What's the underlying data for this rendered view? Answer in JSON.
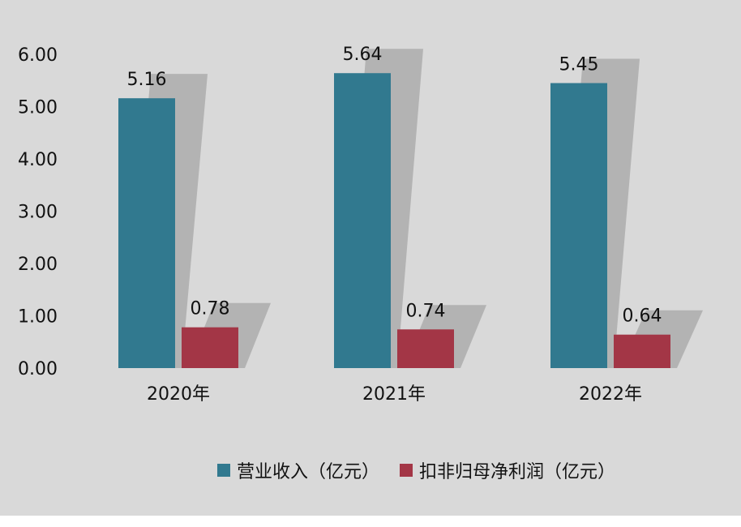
{
  "chart_data": {
    "type": "bar",
    "categories": [
      "2020年",
      "2021年",
      "2022年"
    ],
    "series": [
      {
        "name": "营业收入（亿元）",
        "values": [
          5.16,
          5.64,
          5.45
        ],
        "color": "#31798f"
      },
      {
        "name": "扣非归母净利润（亿元）",
        "values": [
          0.78,
          0.74,
          0.64
        ],
        "color": "#a33646"
      }
    ],
    "ylim": [
      0,
      6
    ],
    "yticks": [
      "0.00",
      "1.00",
      "2.00",
      "3.00",
      "4.00",
      "5.00",
      "6.00"
    ],
    "data_labels": [
      [
        "5.16",
        "5.64",
        "5.45"
      ],
      [
        "0.78",
        "0.74",
        "0.64"
      ]
    ],
    "title": "",
    "xlabel": "",
    "ylabel": "",
    "grid": false,
    "legend_position": "bottom"
  },
  "colors": {
    "background": "#d9d9d9",
    "shadow": "#a6a6a6"
  }
}
